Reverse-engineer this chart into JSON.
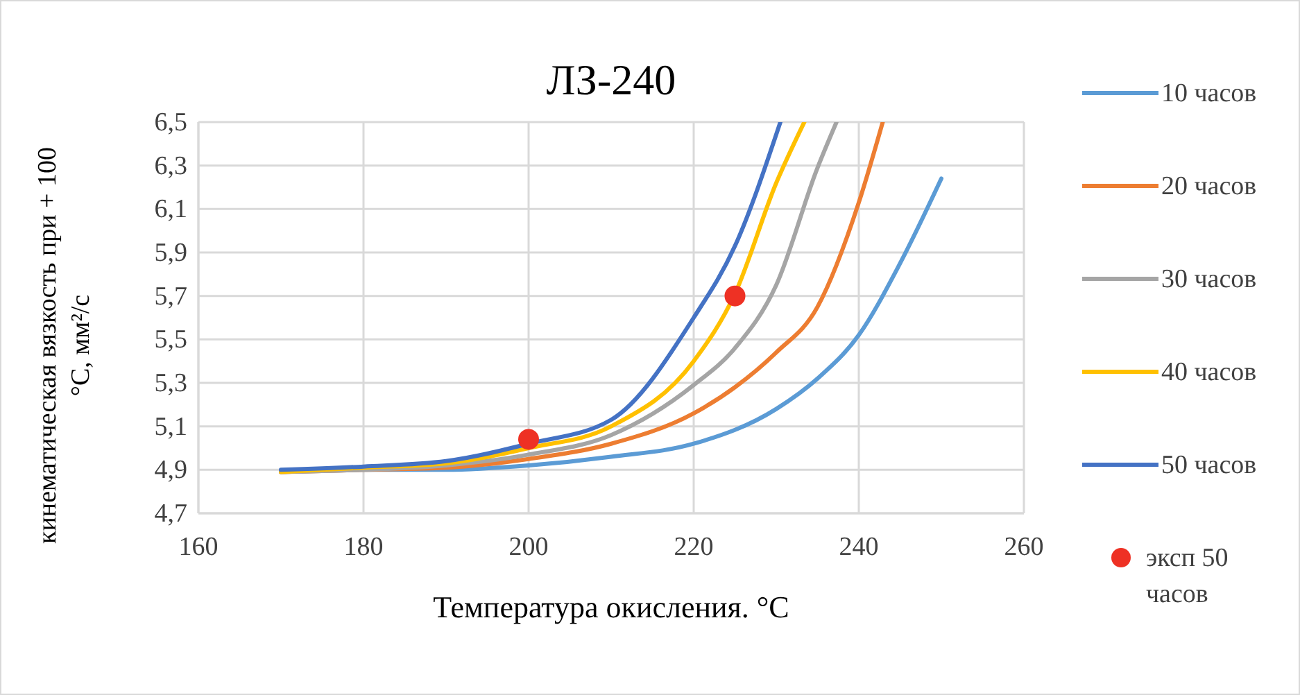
{
  "chart_data": {
    "type": "line",
    "title": "ЛЗ-240",
    "xlabel": "Температура окисления. °C",
    "ylabel": "кинематическая вязкость при + 100\n°C, мм²/с",
    "xlim": [
      160,
      260
    ],
    "xticks": [
      160,
      180,
      200,
      220,
      240,
      260
    ],
    "ylim": [
      4.7,
      6.5
    ],
    "yticks": [
      {
        "value": 4.7,
        "label": "4,7"
      },
      {
        "value": 4.9,
        "label": "4,9"
      },
      {
        "value": 5.1,
        "label": "5,1"
      },
      {
        "value": 5.3,
        "label": "5,3"
      },
      {
        "value": 5.5,
        "label": "5,5"
      },
      {
        "value": 5.7,
        "label": "5,7"
      },
      {
        "value": 5.9,
        "label": "5,9"
      },
      {
        "value": 6.1,
        "label": "6,1"
      },
      {
        "value": 6.3,
        "label": "6,3"
      },
      {
        "value": 6.5,
        "label": "6,5"
      }
    ],
    "grid": true,
    "legend": "right",
    "marker": "none",
    "series": [
      {
        "name": "10 часов",
        "color": "#5b9bd5",
        "x": [
          170,
          180,
          190,
          200,
          210,
          220,
          230,
          235,
          240,
          245,
          250
        ],
        "values": [
          4.89,
          4.9,
          4.9,
          4.92,
          4.96,
          5.02,
          5.18,
          5.32,
          5.52,
          5.85,
          6.24
        ]
      },
      {
        "name": "20 часов",
        "color": "#ed7d31",
        "x": [
          170,
          180,
          190,
          200,
          210,
          220,
          225,
          230,
          235,
          240,
          242.9
        ],
        "values": [
          4.89,
          4.9,
          4.91,
          4.95,
          5.02,
          5.16,
          5.28,
          5.44,
          5.65,
          6.13,
          6.5
        ]
      },
      {
        "name": "30 часов",
        "color": "#a5a5a5",
        "x": [
          170,
          180,
          190,
          200,
          210,
          220,
          225,
          230,
          235,
          237.3
        ],
        "values": [
          4.89,
          4.9,
          4.92,
          4.97,
          5.06,
          5.29,
          5.46,
          5.75,
          6.29,
          6.5
        ]
      },
      {
        "name": "40 часов",
        "color": "#ffc000",
        "x": [
          170,
          180,
          190,
          200,
          210,
          220,
          225,
          230,
          233.4
        ],
        "values": [
          4.89,
          4.91,
          4.93,
          5.0,
          5.1,
          5.4,
          5.71,
          6.22,
          6.5
        ]
      },
      {
        "name": "50 часов",
        "color": "#4472c4",
        "x": [
          170,
          180,
          190,
          200,
          210,
          220,
          225,
          230.5
        ],
        "values": [
          4.9,
          4.915,
          4.94,
          5.02,
          5.13,
          5.6,
          5.93,
          6.5
        ]
      },
      {
        "name": "эксп 50 часов",
        "type": "scatter",
        "marker": "circle",
        "color": "#ee3124",
        "x": [
          200,
          225
        ],
        "values": [
          5.04,
          5.7
        ]
      }
    ]
  }
}
